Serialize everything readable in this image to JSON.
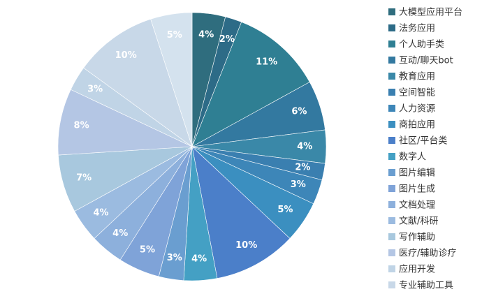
{
  "chart_data": {
    "type": "pie",
    "categories": [
      "大模型应用平台",
      "法务应用",
      "个人助手类",
      "互动/聊天bot",
      "教育应用",
      "空间智能",
      "人力资源",
      "商拍应用",
      "社区/平台类",
      "数字人",
      "图片编辑",
      "图片生成",
      "文档处理",
      "文献/科研",
      "写作辅助",
      "医疗/辅助诊疗",
      "应用开发",
      "专业辅助工具",
      null
    ],
    "values": [
      4,
      2,
      11,
      6,
      4,
      2,
      3,
      5,
      10,
      4,
      3,
      5,
      4,
      4,
      7,
      8,
      3,
      10,
      5
    ],
    "value_labels": [
      "4%",
      "2%",
      "11%",
      "6%",
      "4%",
      "2%",
      "3%",
      "5%",
      "10%",
      "4%",
      "3%",
      "5%",
      "4%",
      "4%",
      "7%",
      "8%",
      "3%",
      "10%",
      "5%"
    ],
    "colors": [
      "#2f6d7e",
      "#2d6b87",
      "#2f7f93",
      "#3379a0",
      "#3a88a8",
      "#3a7fb0",
      "#3d86b8",
      "#3b8fc0",
      "#4b7fc9",
      "#44a0c4",
      "#6a9ed0",
      "#7fa3d8",
      "#8db0dc",
      "#9bbbe0",
      "#a8c8de",
      "#b4c6e4",
      "#c0d4e6",
      "#c8d8e8",
      "#d4e2ee"
    ]
  }
}
